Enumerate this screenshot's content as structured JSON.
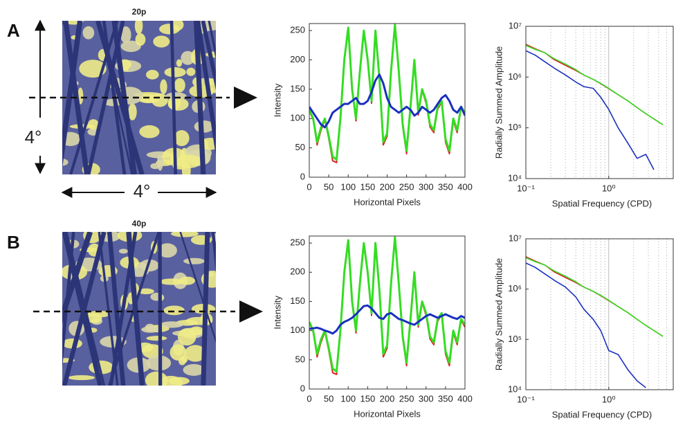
{
  "figure": {
    "panels": [
      {
        "letter": "A",
        "image_label": "20p"
      },
      {
        "letter": "B",
        "image_label": "40p"
      }
    ],
    "scale_label_vertical": "4°",
    "scale_label_horizontal": "4°"
  },
  "chart_data": [
    {
      "type": "line",
      "xlabel": "Horizontal Pixels",
      "ylabel": "Intensity",
      "x": [
        0,
        10,
        20,
        30,
        40,
        50,
        60,
        70,
        80,
        90,
        100,
        110,
        120,
        130,
        140,
        150,
        160,
        170,
        180,
        190,
        200,
        210,
        220,
        230,
        240,
        250,
        260,
        270,
        280,
        290,
        300,
        310,
        320,
        330,
        340,
        350,
        360,
        370,
        380,
        390,
        400
      ],
      "series": [
        {
          "color": "#dd2222",
          "values": [
            113,
            98,
            55,
            80,
            98,
            66,
            28,
            25,
            98,
            198,
            253,
            148,
            96,
            178,
            248,
            198,
            126,
            248,
            168,
            55,
            70,
            178,
            258,
            178,
            86,
            40,
            116,
            198,
            106,
            148,
            126,
            86,
            76,
            116,
            128,
            60,
            40,
            96,
            76,
            118,
            106
          ]
        },
        {
          "color": "#33dd22",
          "values": [
            115,
            100,
            60,
            85,
            100,
            70,
            35,
            30,
            100,
            200,
            255,
            150,
            100,
            180,
            250,
            200,
            130,
            250,
            170,
            60,
            75,
            180,
            260,
            180,
            90,
            45,
            120,
            200,
            110,
            150,
            130,
            90,
            80,
            120,
            130,
            65,
            45,
            100,
            80,
            120,
            110
          ]
        },
        {
          "color": "#1a2fc0",
          "values": [
            120,
            110,
            100,
            90,
            85,
            95,
            110,
            115,
            120,
            125,
            125,
            130,
            135,
            125,
            125,
            130,
            145,
            165,
            175,
            160,
            135,
            120,
            115,
            110,
            115,
            120,
            115,
            105,
            110,
            120,
            115,
            110,
            115,
            125,
            135,
            140,
            130,
            115,
            110,
            120,
            105
          ]
        }
      ],
      "xlim": [
        0,
        400
      ],
      "ylim": [
        0,
        262
      ],
      "xticks": [
        0,
        50,
        100,
        150,
        200,
        250,
        300,
        350,
        400
      ],
      "yticks": [
        0,
        50,
        100,
        150,
        200,
        250
      ]
    },
    {
      "type": "line",
      "xlog": true,
      "ylog": true,
      "grid": true,
      "xlabel": "Spatial Frequency (CPD)",
      "ylabel": "Radially Summed Amplitude",
      "x": [
        0.1,
        0.13,
        0.17,
        0.22,
        0.3,
        0.4,
        0.5,
        0.65,
        0.8,
        1,
        1.3,
        1.7,
        2.2,
        2.8,
        3.5,
        4.5
      ],
      "series": [
        {
          "color": "#dd2222",
          "values": [
            4400000,
            3600000,
            3000000,
            2200000,
            1700000,
            1350000,
            1100000,
            900000,
            740000,
            590000,
            450000,
            340000,
            250000,
            190000,
            150000,
            115000
          ]
        },
        {
          "color": "#33dd22",
          "values": [
            4200000,
            3500000,
            3000000,
            2300000,
            1800000,
            1400000,
            1100000,
            900000,
            750000,
            600000,
            450000,
            340000,
            250000,
            190000,
            150000,
            115000
          ]
        },
        {
          "color": "#1a2fc0",
          "values": [
            3300000,
            2700000,
            2000000,
            1500000,
            1100000,
            800000,
            650000,
            600000,
            400000,
            230000,
            100000,
            50000,
            25000,
            30000,
            15000,
            null
          ]
        }
      ],
      "xlim": [
        0.1,
        6
      ],
      "ylim": [
        10000,
        10000000
      ],
      "xticks": [
        {
          "value": 0.1,
          "label": "10⁻¹"
        },
        {
          "value": 1,
          "label": "10⁰"
        }
      ],
      "xminorticks": [
        0.2,
        0.3,
        0.4,
        0.5,
        0.6,
        0.7,
        0.8,
        0.9,
        2,
        3,
        4,
        5
      ],
      "yticks": [
        {
          "value": 10000,
          "label": "10⁴"
        },
        {
          "value": 100000,
          "label": "10⁵"
        },
        {
          "value": 1000000,
          "label": "10⁶"
        },
        {
          "value": 10000000,
          "label": "10⁷"
        }
      ]
    },
    {
      "type": "line",
      "xlabel": "Horizontal Pixels",
      "ylabel": "Intensity",
      "x": [
        0,
        10,
        20,
        30,
        40,
        50,
        60,
        70,
        80,
        90,
        100,
        110,
        120,
        130,
        140,
        150,
        160,
        170,
        180,
        190,
        200,
        210,
        220,
        230,
        240,
        250,
        260,
        270,
        280,
        290,
        300,
        310,
        320,
        330,
        340,
        350,
        360,
        370,
        380,
        390,
        400
      ],
      "series": [
        {
          "color": "#dd2222",
          "values": [
            113,
            98,
            55,
            80,
            98,
            66,
            28,
            25,
            98,
            198,
            253,
            148,
            96,
            178,
            248,
            198,
            126,
            248,
            168,
            55,
            70,
            178,
            258,
            178,
            86,
            40,
            116,
            198,
            106,
            148,
            126,
            86,
            76,
            116,
            128,
            60,
            40,
            96,
            76,
            118,
            106
          ]
        },
        {
          "color": "#33dd22",
          "values": [
            115,
            100,
            60,
            85,
            100,
            70,
            35,
            30,
            100,
            200,
            255,
            150,
            100,
            180,
            250,
            200,
            130,
            250,
            170,
            60,
            75,
            180,
            260,
            180,
            90,
            45,
            120,
            200,
            110,
            150,
            130,
            90,
            80,
            120,
            130,
            65,
            45,
            100,
            80,
            120,
            110
          ]
        },
        {
          "color": "#1a2fc0",
          "values": [
            103,
            104,
            105,
            103,
            100,
            98,
            95,
            100,
            110,
            115,
            118,
            122,
            128,
            135,
            142,
            143,
            138,
            130,
            122,
            120,
            128,
            130,
            125,
            120,
            118,
            115,
            112,
            110,
            115,
            120,
            125,
            128,
            125,
            122,
            125,
            128,
            125,
            122,
            120,
            125,
            122
          ]
        }
      ],
      "xlim": [
        0,
        400
      ],
      "ylim": [
        0,
        262
      ],
      "xticks": [
        0,
        50,
        100,
        150,
        200,
        250,
        300,
        350,
        400
      ],
      "yticks": [
        0,
        50,
        100,
        150,
        200,
        250
      ]
    },
    {
      "type": "line",
      "xlog": true,
      "ylog": true,
      "grid": true,
      "xlabel": "Spatial Frequency (CPD)",
      "ylabel": "Radially Summed Amplitude",
      "x": [
        0.1,
        0.13,
        0.17,
        0.22,
        0.3,
        0.4,
        0.5,
        0.65,
        0.8,
        1,
        1.3,
        1.7,
        2.2,
        2.8,
        3.5,
        4.5
      ],
      "series": [
        {
          "color": "#dd2222",
          "values": [
            4400000,
            3600000,
            3000000,
            2200000,
            1700000,
            1350000,
            1100000,
            900000,
            740000,
            590000,
            450000,
            340000,
            250000,
            190000,
            150000,
            115000
          ]
        },
        {
          "color": "#33dd22",
          "values": [
            4200000,
            3500000,
            3000000,
            2300000,
            1800000,
            1400000,
            1100000,
            900000,
            750000,
            600000,
            450000,
            340000,
            250000,
            190000,
            150000,
            115000
          ]
        },
        {
          "color": "#1a2fc0",
          "values": [
            3300000,
            2700000,
            2000000,
            1500000,
            1100000,
            700000,
            400000,
            250000,
            150000,
            60000,
            50000,
            25000,
            15000,
            11000,
            null,
            null
          ]
        }
      ],
      "xlim": [
        0.1,
        6
      ],
      "ylim": [
        10000,
        10000000
      ],
      "xticks": [
        {
          "value": 0.1,
          "label": "10⁻¹"
        },
        {
          "value": 1,
          "label": "10⁰"
        }
      ],
      "xminorticks": [
        0.2,
        0.3,
        0.4,
        0.5,
        0.6,
        0.7,
        0.8,
        0.9,
        2,
        3,
        4,
        5
      ],
      "yticks": [
        {
          "value": 10000,
          "label": "10⁴"
        },
        {
          "value": 100000,
          "label": "10⁵"
        },
        {
          "value": 1000000,
          "label": "10⁶"
        },
        {
          "value": 10000000,
          "label": "10⁷"
        }
      ]
    }
  ]
}
